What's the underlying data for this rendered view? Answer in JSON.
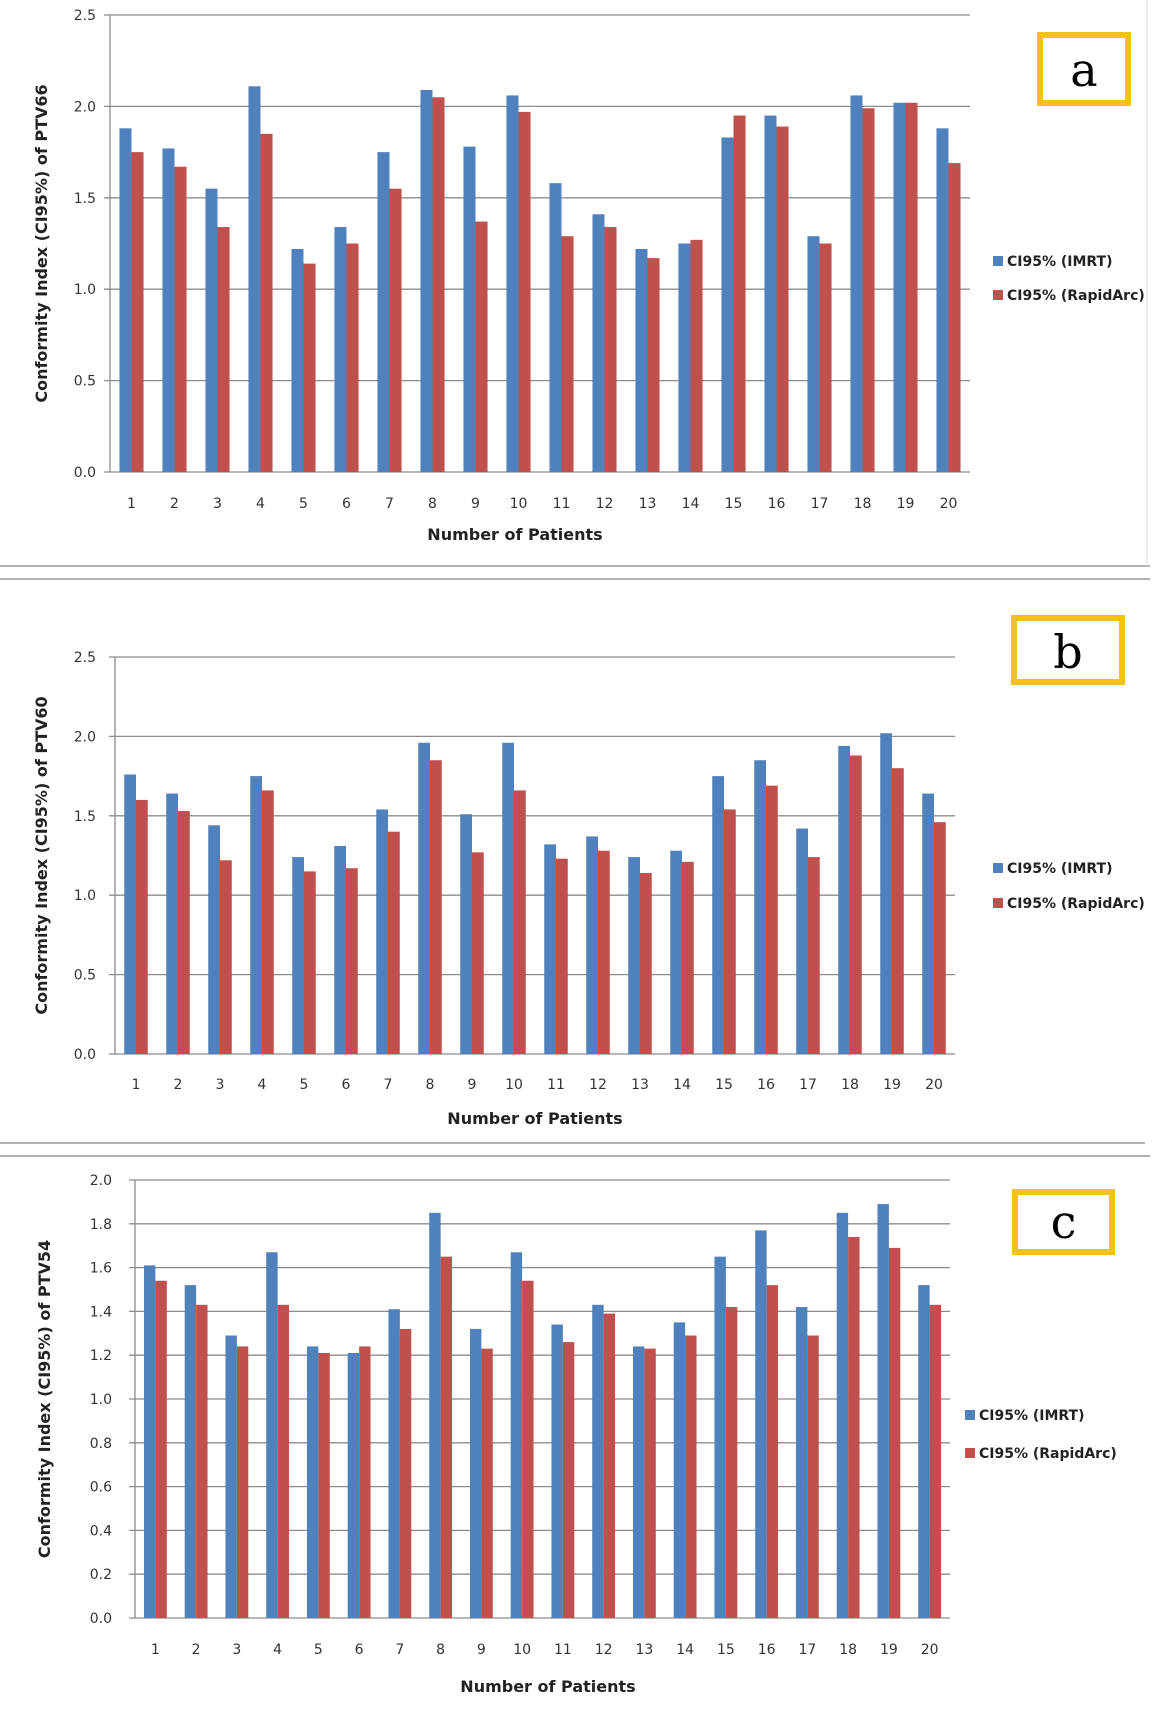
{
  "colors": {
    "imrt": "#4f81bd",
    "rapidarc": "#c0504d",
    "grid": "#8c8c8c",
    "panel_box": "#f2c11b"
  },
  "chart_data": [
    {
      "panel": "a",
      "type": "bar",
      "title": "",
      "xlabel": "Number of Patients",
      "ylabel": "Conformity Index (CI95%) of  PTV66",
      "ylim": [
        0,
        2.5
      ],
      "yticks": [
        "0.0",
        "0.5",
        "1.0",
        "1.5",
        "2.0",
        "2.5"
      ],
      "ytick_values": [
        0,
        0.5,
        1.0,
        1.5,
        2.0,
        2.5
      ],
      "grid": true,
      "legend_position": "right",
      "categories": [
        "1",
        "2",
        "3",
        "4",
        "5",
        "6",
        "7",
        "8",
        "9",
        "10",
        "11",
        "12",
        "13",
        "14",
        "15",
        "16",
        "17",
        "18",
        "19",
        "20"
      ],
      "series": [
        {
          "name": "CI95% (IMRT)",
          "values": [
            1.88,
            1.77,
            1.55,
            2.11,
            1.22,
            1.34,
            1.75,
            2.09,
            1.78,
            2.06,
            1.58,
            1.41,
            1.22,
            1.25,
            1.83,
            1.95,
            1.29,
            2.06,
            2.02,
            1.88
          ]
        },
        {
          "name": "CI95% (RapidArc)",
          "values": [
            1.75,
            1.67,
            1.34,
            1.85,
            1.14,
            1.25,
            1.55,
            2.05,
            1.37,
            1.97,
            1.29,
            1.34,
            1.17,
            1.27,
            1.95,
            1.89,
            1.25,
            1.99,
            2.02,
            1.69
          ]
        }
      ]
    },
    {
      "panel": "b",
      "type": "bar",
      "title": "",
      "xlabel": "Number of Patients",
      "ylabel": "Conformity Index (CI95%) of PTV60",
      "ylim": [
        0,
        2.5
      ],
      "yticks": [
        "0.0",
        "0.5",
        "1.0",
        "1.5",
        "2.0",
        "2.5"
      ],
      "ytick_values": [
        0,
        0.5,
        1.0,
        1.5,
        2.0,
        2.5
      ],
      "grid": true,
      "legend_position": "right",
      "categories": [
        "1",
        "2",
        "3",
        "4",
        "5",
        "6",
        "7",
        "8",
        "9",
        "10",
        "11",
        "12",
        "13",
        "14",
        "15",
        "16",
        "17",
        "18",
        "19",
        "20"
      ],
      "series": [
        {
          "name": "CI95% (IMRT)",
          "values": [
            1.76,
            1.64,
            1.44,
            1.75,
            1.24,
            1.31,
            1.54,
            1.96,
            1.51,
            1.96,
            1.32,
            1.37,
            1.24,
            1.28,
            1.75,
            1.85,
            1.42,
            1.94,
            2.02,
            1.64
          ]
        },
        {
          "name": "CI95% (RapidArc)",
          "values": [
            1.6,
            1.53,
            1.22,
            1.66,
            1.15,
            1.17,
            1.4,
            1.85,
            1.27,
            1.66,
            1.23,
            1.28,
            1.14,
            1.21,
            1.54,
            1.69,
            1.24,
            1.88,
            1.8,
            1.46
          ]
        }
      ]
    },
    {
      "panel": "c",
      "type": "bar",
      "title": "",
      "xlabel": "Number of Patients",
      "ylabel": "Conformity Index (CI95%) of PTV54",
      "ylim": [
        0,
        2.0
      ],
      "yticks": [
        "0.0",
        "0.2",
        "0.4",
        "0.6",
        "0.8",
        "1.0",
        "1.2",
        "1.4",
        "1.6",
        "1.8",
        "2.0"
      ],
      "ytick_values": [
        0,
        0.2,
        0.4,
        0.6,
        0.8,
        1.0,
        1.2,
        1.4,
        1.6,
        1.8,
        2.0
      ],
      "grid": true,
      "legend_position": "right",
      "categories": [
        "1",
        "2",
        "3",
        "4",
        "5",
        "6",
        "7",
        "8",
        "9",
        "10",
        "11",
        "12",
        "13",
        "14",
        "15",
        "16",
        "17",
        "18",
        "19",
        "20"
      ],
      "series": [
        {
          "name": "CI95% (IMRT)",
          "values": [
            1.61,
            1.52,
            1.29,
            1.67,
            1.24,
            1.21,
            1.41,
            1.85,
            1.32,
            1.67,
            1.34,
            1.43,
            1.24,
            1.35,
            1.65,
            1.77,
            1.42,
            1.85,
            1.89,
            1.52
          ]
        },
        {
          "name": "CI95% (RapidArc)",
          "values": [
            1.54,
            1.43,
            1.24,
            1.43,
            1.21,
            1.24,
            1.32,
            1.65,
            1.23,
            1.54,
            1.26,
            1.39,
            1.23,
            1.29,
            1.42,
            1.52,
            1.29,
            1.74,
            1.69,
            1.43
          ]
        }
      ]
    }
  ]
}
